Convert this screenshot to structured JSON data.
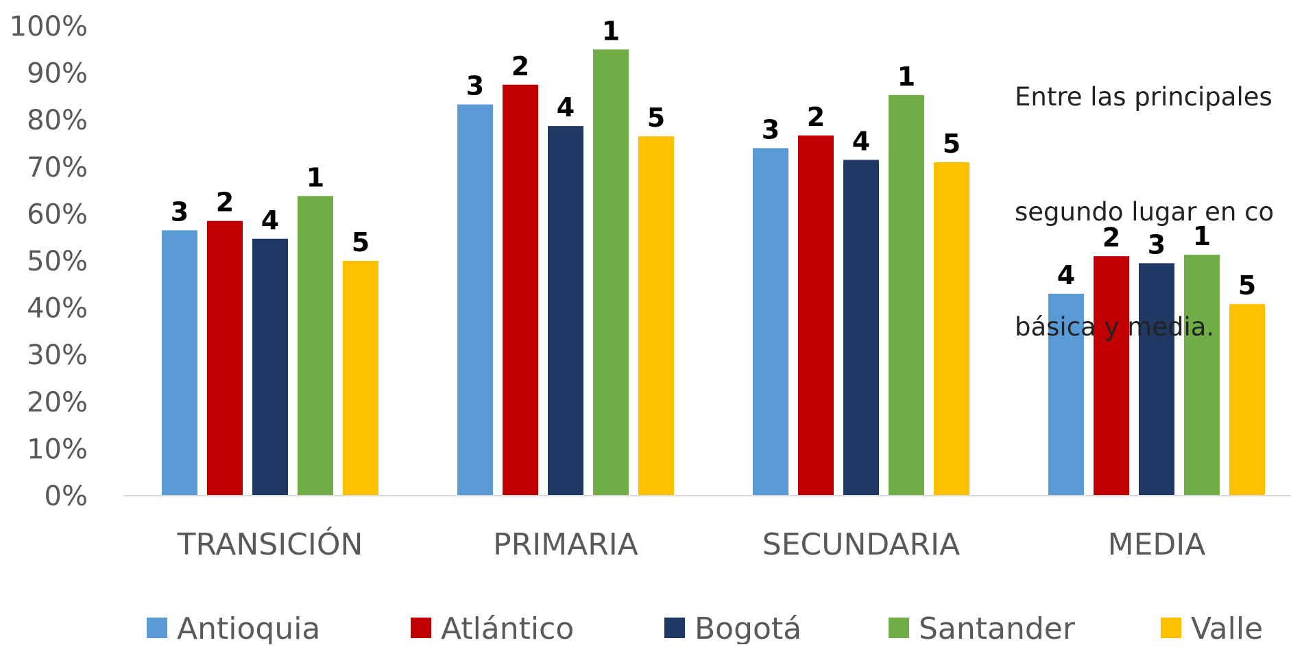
{
  "chart_data": {
    "type": "bar",
    "categories": [
      "TRANSICIÓN",
      "PRIMARIA",
      "SECUNDARIA",
      "MEDIA"
    ],
    "series": [
      {
        "name": "Antioquia",
        "color": "#5B9BD5",
        "values": [
          56.5,
          83.3,
          74.0,
          43.0
        ],
        "ranks": [
          "3",
          "3",
          "3",
          "4"
        ]
      },
      {
        "name": "Atlántico",
        "color": "#C00000",
        "values": [
          58.5,
          87.5,
          76.7,
          51.0
        ],
        "ranks": [
          "2",
          "2",
          "2",
          "2"
        ]
      },
      {
        "name": "Bogotá",
        "color": "#1F3864",
        "values": [
          54.7,
          78.7,
          71.5,
          49.5
        ],
        "ranks": [
          "4",
          "4",
          "4",
          "3"
        ]
      },
      {
        "name": "Santander",
        "color": "#70AD47",
        "values": [
          63.8,
          95.0,
          85.3,
          51.3
        ],
        "ranks": [
          "1",
          "1",
          "1",
          "1"
        ]
      },
      {
        "name": "Valle",
        "color": "#FFC000",
        "values": [
          50.0,
          76.5,
          71.0,
          40.8
        ],
        "ranks": [
          "5",
          "5",
          "5",
          "5"
        ]
      }
    ],
    "yticks": [
      "0%",
      "10%",
      "20%",
      "30%",
      "40%",
      "50%",
      "60%",
      "70%",
      "80%",
      "90%",
      "100%"
    ],
    "ylim": [
      0,
      100
    ],
    "grid": false,
    "legend": "bottom"
  },
  "note": {
    "lines": [
      "Entre las principales",
      "segundo lugar en co",
      "básica y media."
    ]
  }
}
